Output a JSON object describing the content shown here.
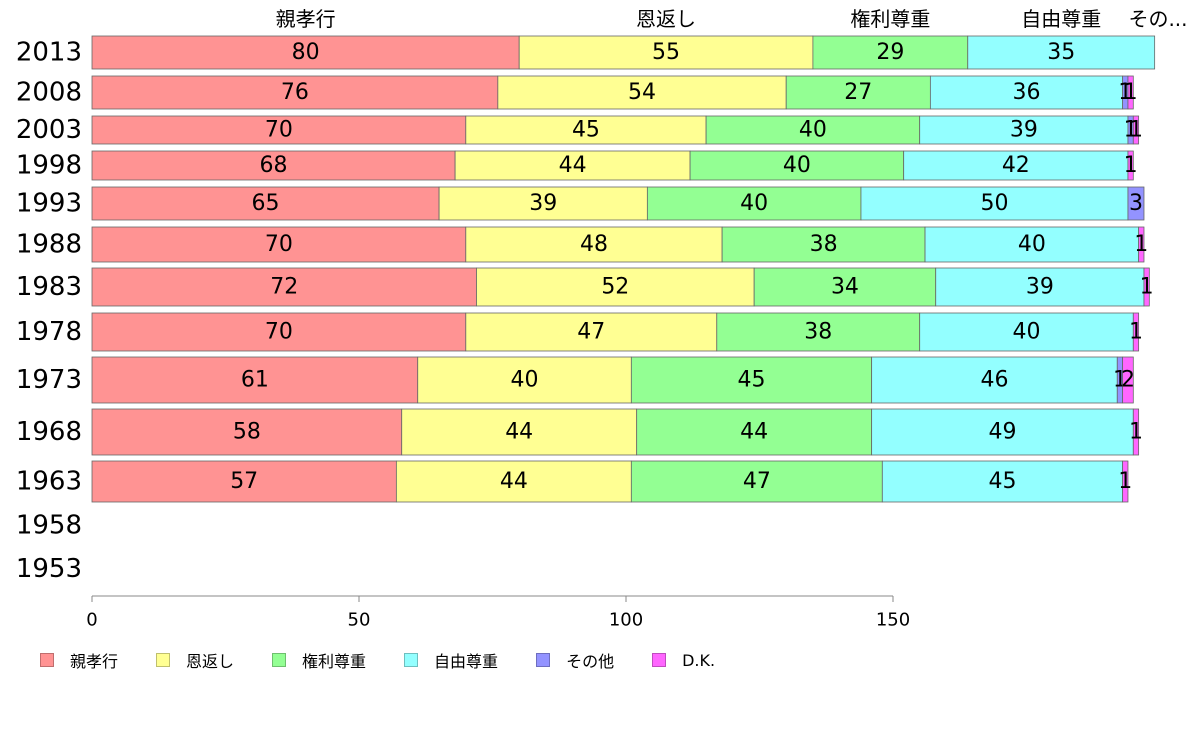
{
  "chart_data": {
    "type": "bar",
    "orientation": "horizontal",
    "stacked": true,
    "title": "",
    "xlabel": "",
    "ylabel": "",
    "xlim": [
      0,
      200
    ],
    "x_ticks": [
      "0",
      "50",
      "100",
      "150"
    ],
    "grid": false,
    "legend_position": "bottom-left",
    "categories": [
      "2013",
      "2008",
      "2003",
      "1998",
      "1993",
      "1988",
      "1983",
      "1978",
      "1973",
      "1968",
      "1963",
      "1958",
      "1953"
    ],
    "series": [
      {
        "name": "親孝行",
        "color": "#ff9393",
        "values": [
          80,
          76,
          70,
          68,
          65,
          70,
          72,
          70,
          61,
          58,
          57,
          null,
          null
        ],
        "labels": [
          "80",
          "76",
          "70",
          "68",
          "65",
          "70",
          "72",
          "70",
          "61",
          "58",
          "57",
          "",
          ""
        ]
      },
      {
        "name": "恩返し",
        "color": "#ffff93",
        "values": [
          55,
          54,
          45,
          44,
          39,
          48,
          52,
          47,
          40,
          44,
          44,
          null,
          null
        ],
        "labels": [
          "55",
          "54",
          "45",
          "44",
          "39",
          "48",
          "52",
          "47",
          "40",
          "44",
          "44",
          "",
          ""
        ]
      },
      {
        "name": "権利尊重",
        "color": "#93ff93",
        "values": [
          29,
          27,
          40,
          40,
          40,
          38,
          34,
          38,
          45,
          44,
          47,
          null,
          null
        ],
        "labels": [
          "29",
          "27",
          "40",
          "40",
          "40",
          "38",
          "34",
          "38",
          "45",
          "44",
          "47",
          "",
          ""
        ]
      },
      {
        "name": "自由尊重",
        "color": "#93ffff",
        "values": [
          35,
          36,
          39,
          42,
          50,
          40,
          39,
          40,
          46,
          49,
          45,
          null,
          null
        ],
        "labels": [
          "35",
          "36",
          "39",
          "42",
          "50",
          "40",
          "39",
          "40",
          "46",
          "49",
          "45",
          "",
          ""
        ]
      },
      {
        "name": "その他",
        "color": "#9393ff",
        "values": [
          0,
          1,
          1,
          0,
          3,
          0,
          0,
          0,
          1,
          0,
          0,
          null,
          null
        ],
        "labels": [
          "",
          "1",
          "1",
          "",
          "3",
          "",
          "",
          "",
          "1",
          "",
          "",
          "",
          ""
        ]
      },
      {
        "name": "D.K.",
        "color": "#ff66ff",
        "values": [
          0,
          1,
          1,
          1,
          0,
          1,
          1,
          1,
          2,
          1,
          1,
          null,
          null
        ],
        "labels": [
          "",
          "1",
          "1",
          "1",
          "",
          "1",
          "1",
          "1",
          "2",
          "1",
          "1",
          "",
          ""
        ]
      }
    ],
    "top_labels": [
      "親孝行",
      "恩返し",
      "権利尊重",
      "自由尊重",
      "その..."
    ]
  }
}
